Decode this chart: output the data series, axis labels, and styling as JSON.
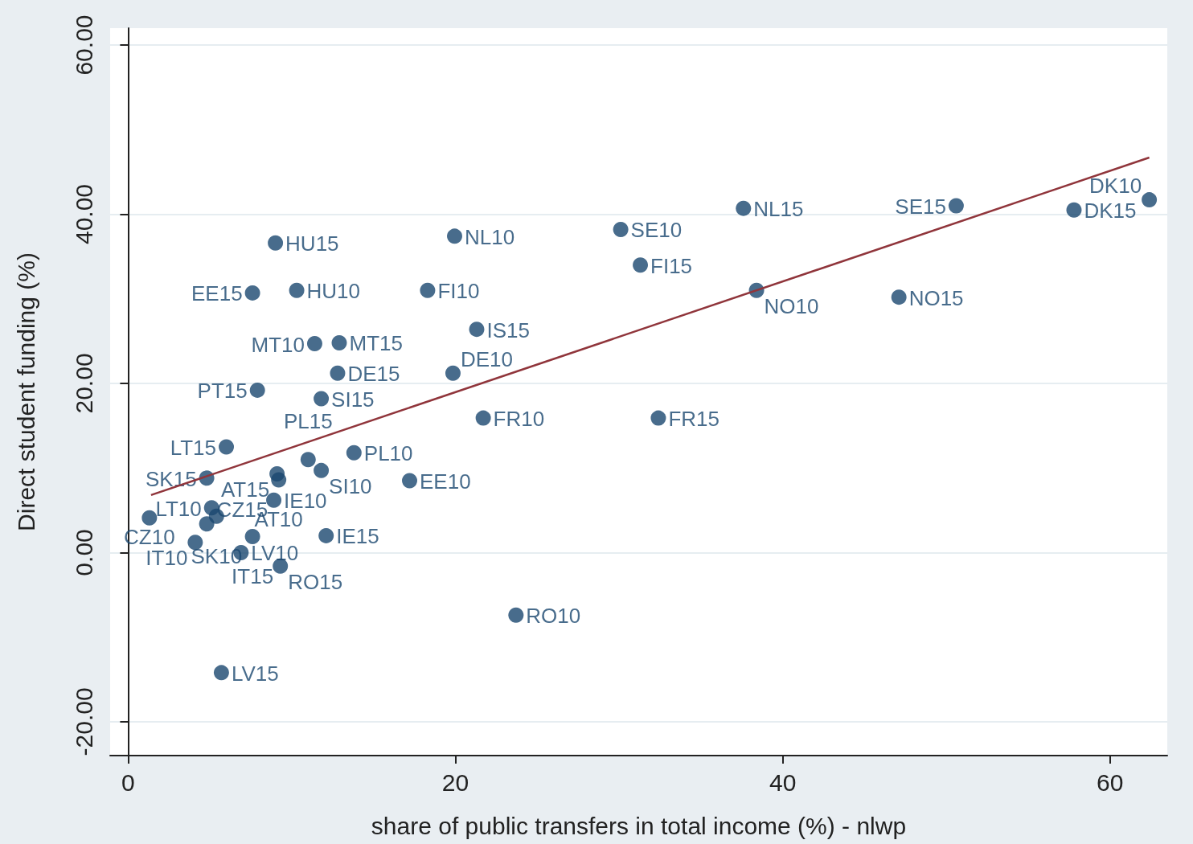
{
  "chart_data": {
    "type": "scatter",
    "xlabel": "share of public transfers in total income (%) - nlwp",
    "ylabel": "Direct student funding (%)",
    "xlim": [
      -1.1,
      63.5
    ],
    "xticks": [
      0,
      20,
      40,
      60
    ],
    "ylim": [
      -24,
      62
    ],
    "yticks": [
      {
        "value": -20,
        "label": "-20.00"
      },
      {
        "value": 0,
        "label": "0.00"
      },
      {
        "value": 20,
        "label": "20.00"
      },
      {
        "value": 40,
        "label": "40.00"
      },
      {
        "value": 60,
        "label": "60.00"
      }
    ],
    "grid": "y",
    "marker": "circle",
    "series": [
      {
        "color": "#1a476f",
        "x": [
          9.0,
          19.95,
          30.1,
          31.3,
          37.6,
          50.6,
          57.8,
          62.4,
          7.6,
          10.3,
          18.3,
          38.4,
          47.1,
          21.3,
          11.4,
          12.9,
          12.8,
          19.85,
          7.9,
          11.8,
          21.7,
          32.4,
          6.0,
          11.0,
          13.8,
          11.8,
          9.1,
          9.2,
          4.8,
          17.2,
          8.9,
          5.1,
          1.3,
          5.4,
          4.8,
          4.1,
          7.6,
          12.1,
          6.9,
          9.3,
          23.7,
          5.7
        ],
        "values": [
          36.6,
          37.4,
          38.2,
          34.0,
          40.7,
          41.0,
          40.5,
          41.7,
          30.7,
          31.0,
          31.0,
          31.0,
          30.2,
          26.4,
          24.7,
          24.8,
          21.2,
          21.2,
          19.2,
          18.2,
          15.9,
          15.9,
          12.5,
          11.0,
          11.8,
          9.7,
          9.3,
          8.6,
          8.8,
          8.5,
          6.2,
          5.3,
          4.1,
          4.3,
          3.4,
          1.2,
          1.9,
          2.0,
          0.0,
          -1.6,
          -7.4,
          -14.2
        ],
        "value_labels": [
          "HU15",
          "NL10",
          "SE10",
          "FI15",
          "NL15",
          "SE15",
          "DK15",
          "DK10",
          "EE15",
          "HU10",
          "FI10",
          "NO10",
          "NO15",
          "IS15",
          "MT10",
          "MT15",
          "DE15",
          "DE10",
          "PT15",
          "SI15",
          "FR10",
          "FR15",
          "LT15",
          "PL15",
          "PL10",
          "SI10",
          "AT15",
          "AT10",
          "SK15",
          "EE10",
          "IE10",
          "LT10",
          "CZ10",
          "SK10",
          "CZ15",
          "IT10",
          "IT15",
          "IE15",
          "LV10",
          "RO15",
          "RO10",
          "LV15"
        ]
      },
      {
        "type": "line",
        "color": "#90353b",
        "marker": "none",
        "x": [
          1.4,
          62.4
        ],
        "values": [
          6.8,
          46.7
        ]
      }
    ]
  }
}
